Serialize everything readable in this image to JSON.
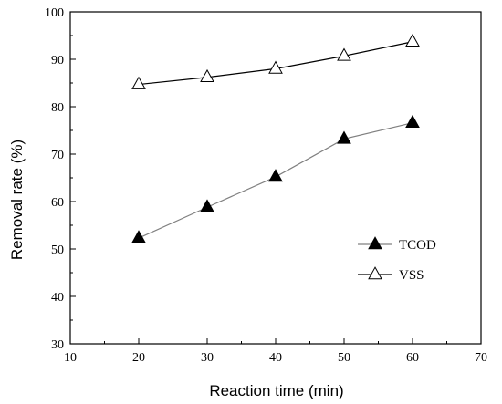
{
  "chart_data": {
    "type": "line",
    "xlabel": "Reaction time (min)",
    "ylabel": "Removal rate (%)",
    "xlim": [
      10,
      70
    ],
    "ylim": [
      30,
      100
    ],
    "x_ticks": [
      10,
      20,
      30,
      40,
      50,
      60,
      70
    ],
    "y_ticks": [
      30,
      40,
      50,
      60,
      70,
      80,
      90,
      100
    ],
    "grid": false,
    "legend_position": "lower-right",
    "series": [
      {
        "name": "TCOD",
        "marker": "filled-triangle",
        "line_color": "#808080",
        "x": [
          20,
          30,
          40,
          50,
          60
        ],
        "y": [
          52.3,
          58.8,
          65.2,
          73.2,
          76.6
        ]
      },
      {
        "name": "VSS",
        "marker": "open-triangle",
        "line_color": "#000000",
        "x": [
          20,
          30,
          40,
          50,
          60
        ],
        "y": [
          84.7,
          86.2,
          88.0,
          90.7,
          93.7
        ]
      }
    ]
  }
}
